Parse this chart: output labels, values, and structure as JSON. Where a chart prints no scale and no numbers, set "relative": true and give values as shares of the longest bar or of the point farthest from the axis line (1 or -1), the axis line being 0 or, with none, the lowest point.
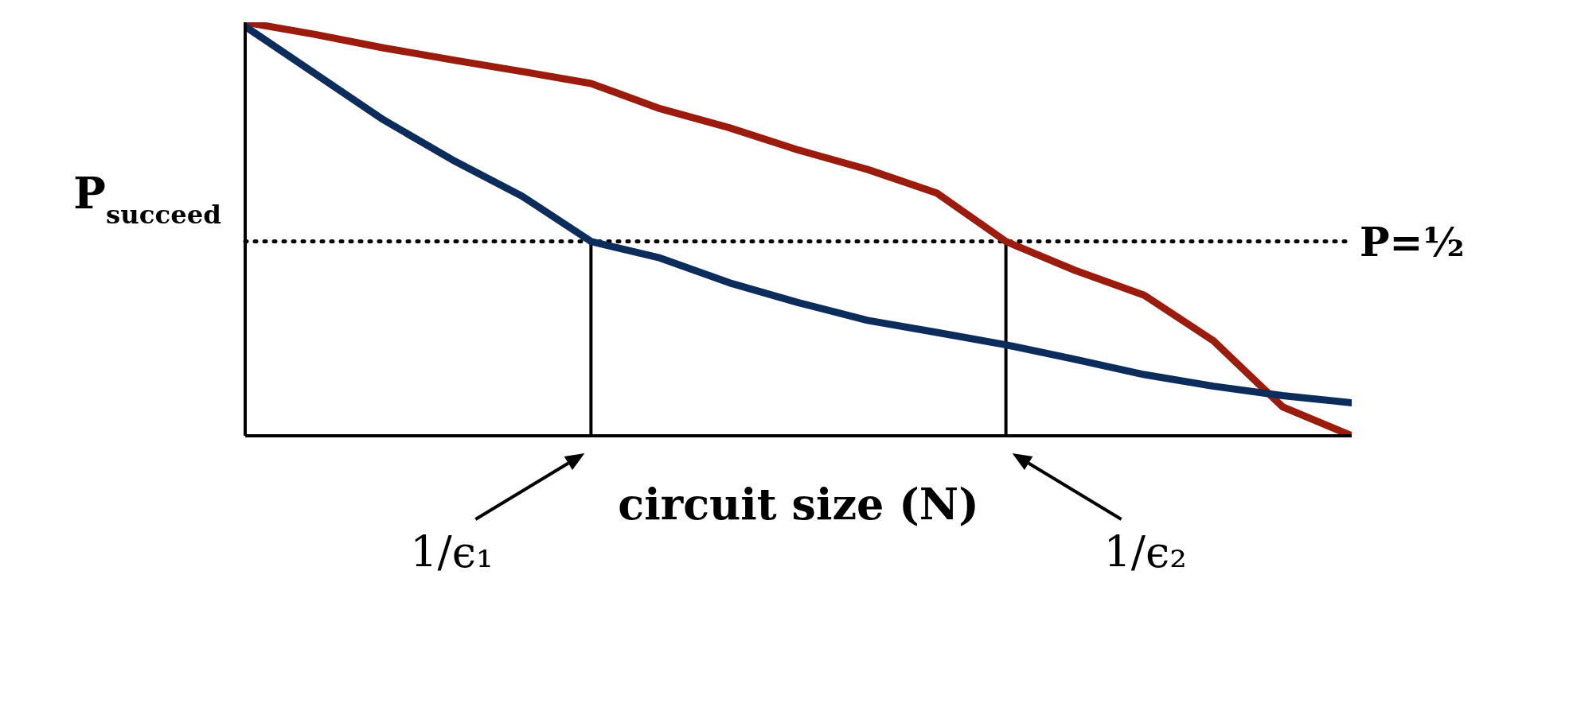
{
  "chart_data": {
    "type": "line",
    "relative": true,
    "xlabel": "circuit size (N)",
    "ylabel": "P$_{succeed}$",
    "grid": false,
    "marker": "none",
    "line_style": "solid",
    "categories": [
      null,
      null,
      null,
      null,
      null,
      null,
      null,
      null,
      null,
      null,
      null,
      null,
      null,
      null,
      null,
      null,
      null
    ],
    "series": [
      {
        "color": "#9b1b0c",
        "values": [
          1.0,
          0.971,
          0.938,
          0.909,
          0.881,
          0.852,
          0.791,
          0.745,
          0.691,
          0.644,
          0.587,
          0.47,
          0.4,
          0.34,
          0.23,
          0.07,
          0.0
        ]
      },
      {
        "color": "#0c2d5c",
        "values": [
          0.99,
          0.877,
          0.764,
          0.667,
          0.58,
          0.47,
          0.43,
          0.37,
          0.322,
          0.279,
          0.25,
          0.22,
          0.185,
          0.148,
          0.12,
          0.097,
          0.08
        ]
      }
    ],
    "ref_lines": [
      {
        "axis": "y",
        "value": 0.47,
        "label": "P=½",
        "line_style": "dotted",
        "color": "#000000"
      }
    ],
    "annotations": [
      "1/ϵ₁",
      "1/ϵ₂"
    ]
  }
}
